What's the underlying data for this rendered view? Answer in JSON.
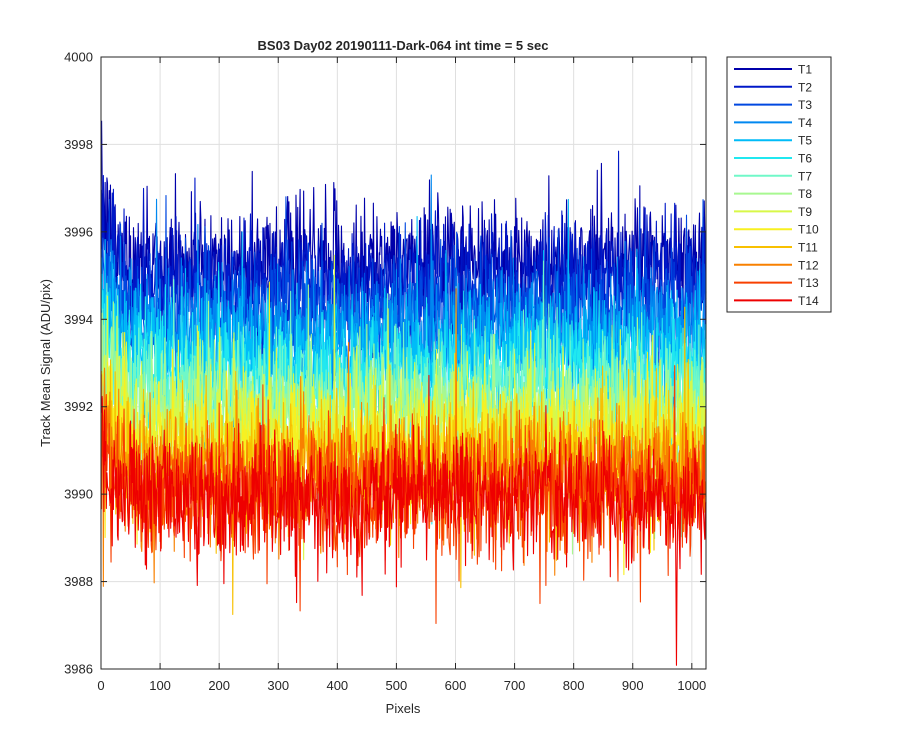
{
  "chart_data": {
    "type": "line",
    "title": "BS03 Day02 20190111-Dark-064 int time = 5 sec",
    "xlabel": "Pixels",
    "ylabel": "Track Mean Signal (ADU/pix)",
    "xlim": [
      0,
      1024
    ],
    "ylim": [
      3986,
      4000
    ],
    "xticks": [
      0,
      100,
      200,
      300,
      400,
      500,
      600,
      700,
      800,
      900,
      1000
    ],
    "yticks": [
      3986,
      3988,
      3990,
      3992,
      3994,
      3996,
      3998,
      4000
    ],
    "grid": true,
    "legend_position": "outside-top-right",
    "x_range": [
      1,
      1024
    ],
    "series": [
      {
        "name": "T1",
        "color": "#0000AA",
        "mean": 3995.3,
        "std": 0.7,
        "start_mean": 3996.6
      },
      {
        "name": "T2",
        "color": "#0018C8",
        "mean": 3994.8,
        "std": 0.7,
        "start_mean": 3996.2
      },
      {
        "name": "T3",
        "color": "#0048E0",
        "mean": 3994.2,
        "std": 0.7,
        "start_mean": 3995.6
      },
      {
        "name": "T4",
        "color": "#0088F0",
        "mean": 3993.7,
        "std": 0.7,
        "start_mean": 3995.1
      },
      {
        "name": "T5",
        "color": "#00BCF8",
        "mean": 3993.2,
        "std": 0.7,
        "start_mean": 3994.6
      },
      {
        "name": "T6",
        "color": "#20E8F0",
        "mean": 3992.7,
        "std": 0.7,
        "start_mean": 3994.1
      },
      {
        "name": "T7",
        "color": "#70F8C8",
        "mean": 3992.3,
        "std": 0.7,
        "start_mean": 3993.7
      },
      {
        "name": "T8",
        "color": "#A8F890",
        "mean": 3991.9,
        "std": 0.7,
        "start_mean": 3993.3
      },
      {
        "name": "T9",
        "color": "#D8F848",
        "mean": 3991.5,
        "std": 0.7,
        "start_mean": 3992.9
      },
      {
        "name": "T10",
        "color": "#F8F020",
        "mean": 3991.1,
        "std": 0.7,
        "start_mean": 3992.5
      },
      {
        "name": "T11",
        "color": "#F8C000",
        "mean": 3990.7,
        "std": 0.7,
        "start_mean": 3992.1
      },
      {
        "name": "T12",
        "color": "#F88000",
        "mean": 3990.4,
        "std": 0.7,
        "start_mean": 3991.8
      },
      {
        "name": "T13",
        "color": "#F84000",
        "mean": 3990.1,
        "std": 0.7,
        "start_mean": 3991.5
      },
      {
        "name": "T14",
        "color": "#EE0000",
        "mean": 3989.9,
        "std": 0.7,
        "start_mean": 3991.3
      }
    ]
  }
}
